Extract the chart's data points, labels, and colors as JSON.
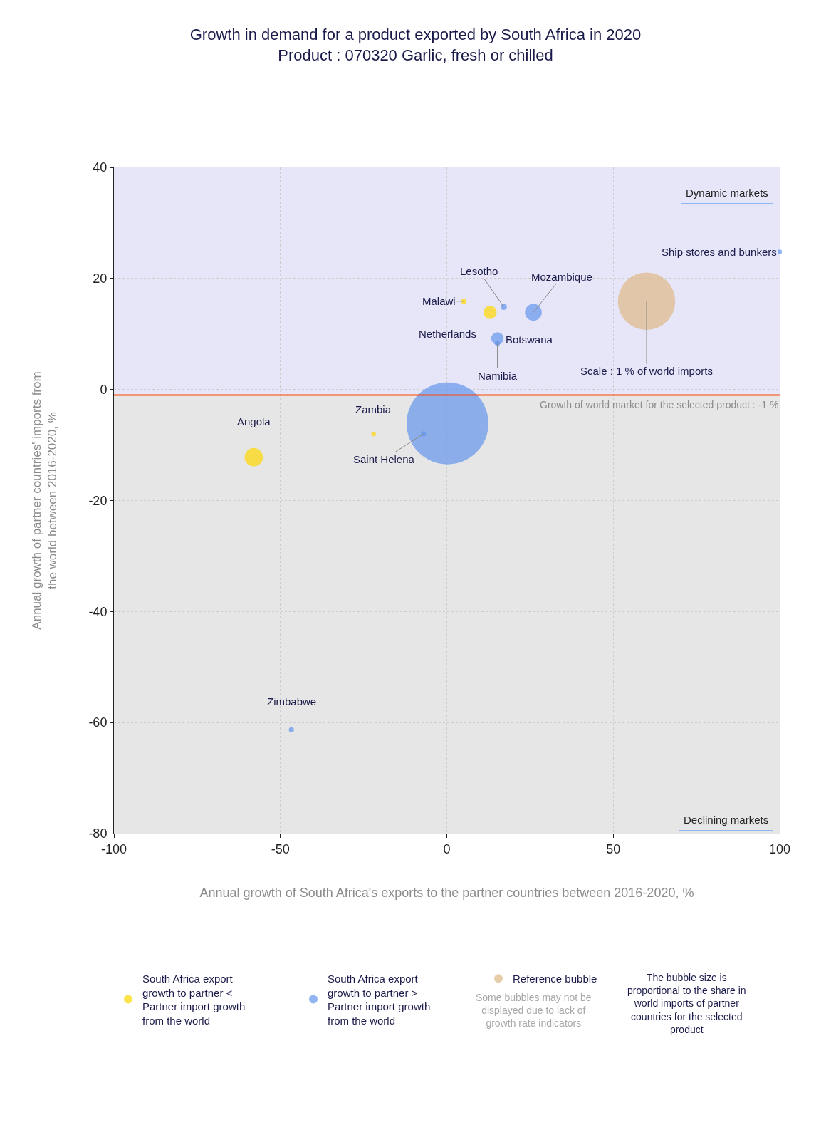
{
  "chart_data": {
    "type": "bubble",
    "title": "Growth in demand for a product exported by South Africa in 2020",
    "subtitle": "Product : 070320 Garlic, fresh or chilled",
    "xlabel": "Annual growth of South Africa's exports to the partner countries between 2016-2020, %",
    "ylabel": "Annual growth of partner countries' imports from the world between 2016-2020, %",
    "series": [
      {
        "name": "South Africa export growth to partner < Partner import growth from the world",
        "color": "#ffd700",
        "x": [
          5.1,
          13,
          -58,
          -22
        ],
        "values": [
          15.9,
          13.9,
          -12.2,
          -8
        ],
        "sizes": [
          0.004,
          0.026,
          0.05,
          0.003
        ]
      },
      {
        "name": "South Africa export growth to partner > Partner import growth from the world",
        "color": "#6495ed",
        "x": [
          17.1,
          26,
          15.2,
          15.2,
          100,
          -7,
          0.2,
          -46.7
        ],
        "values": [
          14.9,
          13.9,
          9.2,
          8.3,
          24.8,
          -8,
          -6.1,
          -61.3
        ],
        "sizes": [
          0.006,
          0.042,
          0.023,
          0.004,
          0.003,
          0.004,
          1,
          0.004
        ]
      },
      {
        "name": "Reference bubble",
        "color": "#deb887",
        "x": [
          60
        ],
        "values": [
          15.9
        ],
        "sizes": [
          0.49
        ]
      }
    ],
    "xlim": [
      -100,
      100
    ],
    "xticks": [
      -100,
      -50,
      0,
      50,
      100
    ],
    "ylim": [
      -80,
      40
    ],
    "yticks": [
      -80,
      -60,
      -40,
      -20,
      0,
      20,
      40
    ],
    "grid": true,
    "legend": "bottom",
    "marker": "circle",
    "ref_lines": [
      {
        "axis": "y",
        "value": -1,
        "label": "Growth of world market for the selected product : -1 %",
        "color": "#ff4500"
      }
    ],
    "bands": [
      {
        "axis": "y",
        "from": -1,
        "to": 40,
        "label": "Dynamic markets",
        "color": "#e6e6f8"
      },
      {
        "axis": "y",
        "from": -80,
        "to": -1,
        "label": "Declining markets",
        "color": "#e6e6e6"
      }
    ],
    "annotations": [
      {
        "text": "Malawi",
        "x": 5.1,
        "y": 15.9
      },
      {
        "text": "Netherlands",
        "x": 13,
        "y": 13.9
      },
      {
        "text": "Lesotho",
        "x": 17.1,
        "y": 14.9
      },
      {
        "text": "Mozambique",
        "x": 26,
        "y": 13.9
      },
      {
        "text": "Botswana",
        "x": 15.2,
        "y": 9.2
      },
      {
        "text": "Namibia",
        "x": 15.2,
        "y": 8.3
      },
      {
        "text": "Ship stores and bunkers",
        "x": 100,
        "y": 24.8
      },
      {
        "text": "Angola",
        "x": -58,
        "y": -12.2
      },
      {
        "text": "Zambia",
        "x": -22,
        "y": -8
      },
      {
        "text": "Saint Helena",
        "x": -7,
        "y": -8
      },
      {
        "text": "Zimbabwe",
        "x": -46.7,
        "y": -61.3
      },
      {
        "text": "Scale : 1 % of world imports",
        "x": 60,
        "y": 15.9
      },
      "Some bubbles may not be displayed due to lack of growth rate indicators",
      "The bubble size is proportional to the share in world imports of partner countries for the selected product"
    ]
  }
}
